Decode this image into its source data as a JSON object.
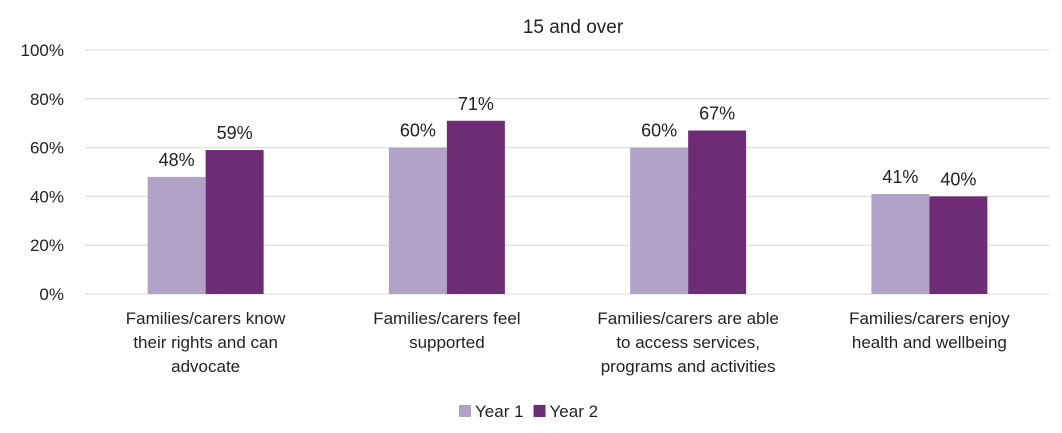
{
  "chart_data": {
    "type": "bar",
    "title": "15 and over",
    "categories": [
      [
        "Families/carers know",
        "their rights and can",
        "advocate"
      ],
      [
        "Families/carers feel",
        "supported"
      ],
      [
        "Families/carers are able",
        "to access services,",
        "programs and activities"
      ],
      [
        "Families/carers enjoy",
        "health and wellbeing"
      ]
    ],
    "series": [
      {
        "name": "Year 1",
        "values": [
          48,
          60,
          60,
          41
        ],
        "color": "#b3a2c8"
      },
      {
        "name": "Year 2",
        "values": [
          59,
          71,
          67,
          40
        ],
        "color": "#6e2c77"
      }
    ],
    "value_suffix": "%",
    "ylim": [
      0,
      100
    ],
    "yticks": [
      0,
      20,
      40,
      60,
      80,
      100
    ],
    "grid": true,
    "legend": "bottom-center"
  }
}
